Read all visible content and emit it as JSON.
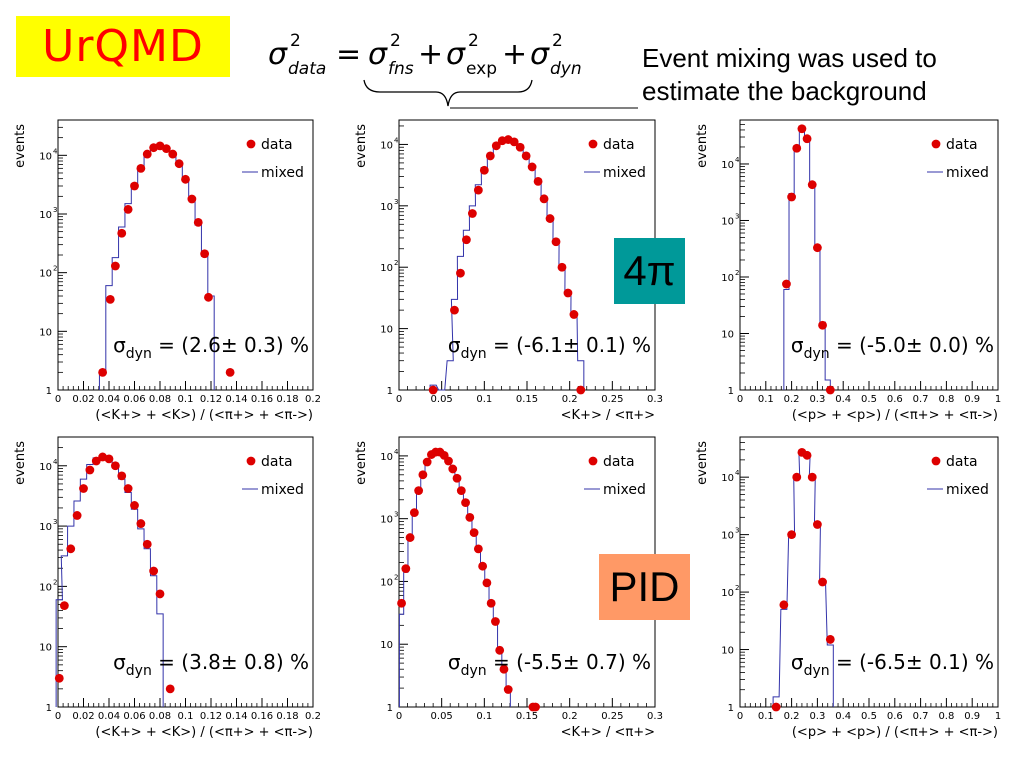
{
  "header": {
    "model": "UrQMD",
    "formula": {
      "lhs": "data",
      "terms": [
        "fns",
        "exp",
        "dyn"
      ]
    },
    "note_lines": [
      "Event mixing was used to",
      "estimate  the background"
    ]
  },
  "badges": {
    "top": "4π",
    "bottom": "PID"
  },
  "colors": {
    "data": "#dd0000",
    "mixed": "#3333aa",
    "urqmd_bg": "#ffff00",
    "urqmd_text": "#ff0000",
    "badge_4pi": "#009999",
    "badge_pid": "#ff9966"
  },
  "chart_data": [
    {
      "type": "scatter",
      "yscale": "log",
      "ylabel": "events",
      "xlabel": "(<K+> + <K>) / (<π+> + <π->)",
      "xlim": [
        0,
        0.2
      ],
      "ylim": [
        1,
        40000
      ],
      "xticks": [
        "0",
        "0.02",
        "0.04",
        "0.06",
        "0.08",
        "0.1",
        "0.12",
        "0.14",
        "0.16",
        "0.18",
        "0.2"
      ],
      "legend": [
        "data",
        "mixed"
      ],
      "sigma_dyn": "(2.6± 0.3) %",
      "series": [
        {
          "name": "data",
          "x": [
            0.035,
            0.041,
            0.045,
            0.05,
            0.055,
            0.06,
            0.065,
            0.07,
            0.075,
            0.08,
            0.085,
            0.09,
            0.095,
            0.1,
            0.105,
            0.11,
            0.115,
            0.118,
            0.135
          ],
          "y": [
            2,
            35,
            130,
            470,
            1200,
            3000,
            6000,
            10500,
            13500,
            14500,
            13000,
            10500,
            7200,
            3900,
            1800,
            720,
            210,
            38,
            2
          ]
        },
        {
          "name": "mixed",
          "x": [
            0.035,
            0.04,
            0.045,
            0.05,
            0.055,
            0.06,
            0.065,
            0.07,
            0.075,
            0.08,
            0.085,
            0.09,
            0.095,
            0.1,
            0.105,
            0.11,
            0.115,
            0.12
          ],
          "y": [
            2,
            60,
            180,
            600,
            1500,
            3300,
            6400,
            10700,
            13700,
            14400,
            12800,
            10100,
            6800,
            3700,
            1700,
            650,
            190,
            40
          ]
        }
      ]
    },
    {
      "type": "scatter",
      "yscale": "log",
      "ylabel": "events",
      "xlabel": "<K+> / <π+>",
      "xlim": [
        0,
        0.3
      ],
      "ylim": [
        1,
        25000
      ],
      "xticks": [
        "0",
        "0.05",
        "0.1",
        "0.15",
        "0.2",
        "0.25",
        "0.3"
      ],
      "legend": [
        "data",
        "mixed"
      ],
      "sigma_dyn": "(-6.1± 0.1) %",
      "series": [
        {
          "name": "data",
          "x": [
            0.04,
            0.065,
            0.072,
            0.079,
            0.086,
            0.093,
            0.1,
            0.107,
            0.114,
            0.121,
            0.128,
            0.135,
            0.142,
            0.149,
            0.156,
            0.163,
            0.17,
            0.177,
            0.184,
            0.191,
            0.198,
            0.205,
            0.213
          ],
          "y": [
            1,
            20,
            80,
            280,
            750,
            1800,
            3800,
            6500,
            9500,
            11500,
            12000,
            11000,
            9000,
            6500,
            4300,
            2500,
            1300,
            620,
            260,
            100,
            38,
            17,
            1
          ]
        },
        {
          "name": "mixed",
          "x": [
            0.04,
            0.05,
            0.06,
            0.065,
            0.072,
            0.079,
            0.086,
            0.093,
            0.1,
            0.107,
            0.114,
            0.121,
            0.128,
            0.135,
            0.142,
            0.149,
            0.156,
            0.163,
            0.17,
            0.177,
            0.184,
            0.191,
            0.198,
            0.205,
            0.213
          ],
          "y": [
            1.2,
            1,
            3,
            30,
            150,
            400,
            1000,
            2200,
            4200,
            7000,
            9800,
            11600,
            12000,
            11000,
            8800,
            6300,
            4100,
            2400,
            1200,
            600,
            250,
            100,
            40,
            17,
            3
          ]
        }
      ]
    },
    {
      "type": "scatter",
      "yscale": "log",
      "ylabel": "events",
      "xlabel": "(<p> + <p>) / (<π+> + <π->)",
      "xlim": [
        0,
        1
      ],
      "ylim": [
        1,
        60000
      ],
      "xticks": [
        "0",
        "0.1",
        "0.2",
        "0.3",
        "0.4",
        "0.5",
        "0.6",
        "0.7",
        "0.8",
        "0.9",
        "1"
      ],
      "legend": [
        "data",
        "mixed"
      ],
      "sigma_dyn": "(-5.0± 0.0) %",
      "series": [
        {
          "name": "data",
          "x": [
            0.18,
            0.2,
            0.22,
            0.24,
            0.26,
            0.28,
            0.3,
            0.32,
            0.35
          ],
          "y": [
            75,
            2600,
            19000,
            42000,
            28000,
            4300,
            330,
            14,
            1
          ]
        },
        {
          "name": "mixed",
          "x": [
            0.18,
            0.2,
            0.22,
            0.24,
            0.26,
            0.28,
            0.3,
            0.32,
            0.34
          ],
          "y": [
            60,
            3000,
            20000,
            40000,
            26000,
            4200,
            350,
            16,
            1.5
          ]
        }
      ]
    },
    {
      "type": "scatter",
      "yscale": "log",
      "ylabel": "events",
      "xlabel": "(<K+> + <K>) / (<π+> + <π->)",
      "xlim": [
        0,
        0.2
      ],
      "ylim": [
        1,
        30000
      ],
      "xticks": [
        "0",
        "0.02",
        "0.04",
        "0.06",
        "0.08",
        "0.1",
        "0.12",
        "0.14",
        "0.16",
        "0.18",
        "0.2"
      ],
      "legend": [
        "data",
        "mixed"
      ],
      "sigma_dyn": "(3.8± 0.8) %",
      "series": [
        {
          "name": "data",
          "x": [
            0.001,
            0.005,
            0.01,
            0.015,
            0.02,
            0.025,
            0.03,
            0.035,
            0.04,
            0.045,
            0.05,
            0.055,
            0.06,
            0.065,
            0.07,
            0.075,
            0.08,
            0.088
          ],
          "y": [
            3,
            48,
            420,
            1500,
            4200,
            8500,
            12000,
            14000,
            13000,
            10000,
            6800,
            4200,
            2200,
            1100,
            500,
            180,
            75,
            2
          ]
        },
        {
          "name": "mixed",
          "x": [
            0.001,
            0.005,
            0.01,
            0.015,
            0.02,
            0.025,
            0.03,
            0.035,
            0.04,
            0.045,
            0.05,
            0.055,
            0.06,
            0.065,
            0.07,
            0.075,
            0.08
          ],
          "y": [
            60,
            320,
            1000,
            2600,
            6000,
            10500,
            13500,
            14000,
            12200,
            9300,
            6000,
            3600,
            1900,
            900,
            420,
            150,
            35
          ]
        }
      ]
    },
    {
      "type": "scatter",
      "yscale": "log",
      "ylabel": "events",
      "xlabel": "<K+> / <π+>",
      "xlim": [
        0,
        0.3
      ],
      "ylim": [
        1,
        20000
      ],
      "xticks": [
        "0",
        "0.05",
        "0.1",
        "0.15",
        "0.2",
        "0.25",
        "0.3"
      ],
      "legend": [
        "data",
        "mixed"
      ],
      "sigma_dyn": "(-5.5± 0.7) %",
      "series": [
        {
          "name": "data",
          "x": [
            0.003,
            0.008,
            0.013,
            0.018,
            0.023,
            0.028,
            0.033,
            0.038,
            0.043,
            0.048,
            0.053,
            0.058,
            0.063,
            0.068,
            0.073,
            0.078,
            0.083,
            0.088,
            0.093,
            0.098,
            0.103,
            0.108,
            0.113,
            0.118,
            0.123,
            0.128,
            0.157,
            0.16
          ],
          "y": [
            45,
            160,
            500,
            1250,
            2800,
            5000,
            8000,
            10500,
            11500,
            11500,
            10200,
            8300,
            6200,
            4400,
            2800,
            1800,
            1050,
            600,
            330,
            175,
            95,
            45,
            23,
            8,
            4,
            1.9,
            1,
            1
          ]
        },
        {
          "name": "mixed",
          "x": [
            0.003,
            0.008,
            0.013,
            0.018,
            0.023,
            0.028,
            0.033,
            0.038,
            0.043,
            0.048,
            0.053,
            0.058,
            0.063,
            0.068,
            0.073,
            0.078,
            0.083,
            0.088,
            0.093,
            0.098,
            0.103,
            0.108,
            0.113,
            0.118,
            0.123,
            0.128
          ],
          "y": [
            30,
            140,
            480,
            1200,
            2700,
            5000,
            8100,
            10500,
            11600,
            11400,
            10000,
            8200,
            6100,
            4300,
            2800,
            1750,
            1000,
            580,
            320,
            170,
            90,
            45,
            22,
            9,
            4,
            2
          ]
        }
      ]
    },
    {
      "type": "scatter",
      "yscale": "log",
      "ylabel": "events",
      "xlabel": "(<p> + <p>) / (<π+> + <π->)",
      "xlim": [
        0,
        1
      ],
      "ylim": [
        1,
        50000
      ],
      "xticks": [
        "0",
        "0.1",
        "0.2",
        "0.3",
        "0.4",
        "0.5",
        "0.6",
        "0.7",
        "0.8",
        "0.9",
        "1"
      ],
      "legend": [
        "data",
        "mixed"
      ],
      "sigma_dyn": "(-6.5± 0.1) %",
      "series": [
        {
          "name": "data",
          "x": [
            0.14,
            0.17,
            0.2,
            0.22,
            0.24,
            0.26,
            0.28,
            0.3,
            0.32,
            0.35
          ],
          "y": [
            1,
            60,
            1000,
            10000,
            27000,
            24000,
            10000,
            1500,
            150,
            15
          ]
        },
        {
          "name": "mixed",
          "x": [
            0.14,
            0.17,
            0.2,
            0.22,
            0.24,
            0.26,
            0.28,
            0.3,
            0.32,
            0.35
          ],
          "y": [
            1.5,
            50,
            900,
            9500,
            27000,
            23500,
            9500,
            1400,
            140,
            12
          ]
        }
      ]
    }
  ]
}
